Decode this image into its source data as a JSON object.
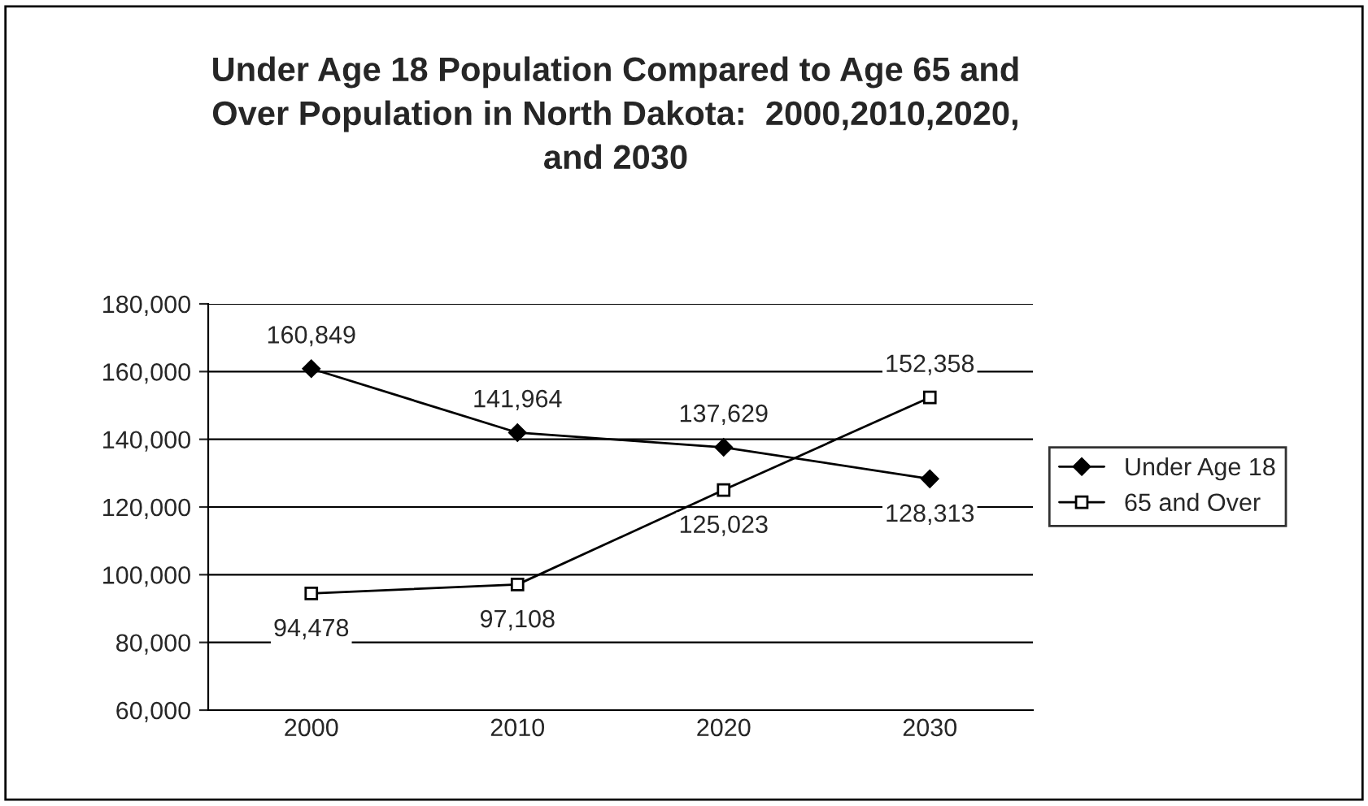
{
  "chart_data": {
    "type": "line",
    "title": "Under Age 18 Population Compared to Age 65 and\nOver Population in North Dakota:  2000,2010,2020,\nand 2030",
    "categories": [
      "2000",
      "2010",
      "2020",
      "2030"
    ],
    "series": [
      {
        "name": "Under Age 18",
        "color": "#000000",
        "marker": "diamond",
        "values": [
          160849,
          141964,
          137629,
          128313
        ],
        "value_labels": [
          "160,849",
          "141,964",
          "137,629",
          "128,313"
        ]
      },
      {
        "name": "65 and Over",
        "color": "#000000",
        "marker": "square",
        "values": [
          94478,
          97108,
          125023,
          152358
        ],
        "value_labels": [
          "94,478",
          "97,108",
          "125,023",
          "152,358"
        ]
      }
    ],
    "ylim": [
      60000,
      180000
    ],
    "yticks": [
      {
        "value": 60000,
        "label": "60,000"
      },
      {
        "value": 80000,
        "label": "80,000"
      },
      {
        "value": 100000,
        "label": "100,000"
      },
      {
        "value": 120000,
        "label": "120,000"
      },
      {
        "value": 140000,
        "label": "140,000"
      },
      {
        "value": 160000,
        "label": "160,000"
      },
      {
        "value": 180000,
        "label": "180,000"
      }
    ],
    "grid": "y",
    "legend": "right"
  }
}
